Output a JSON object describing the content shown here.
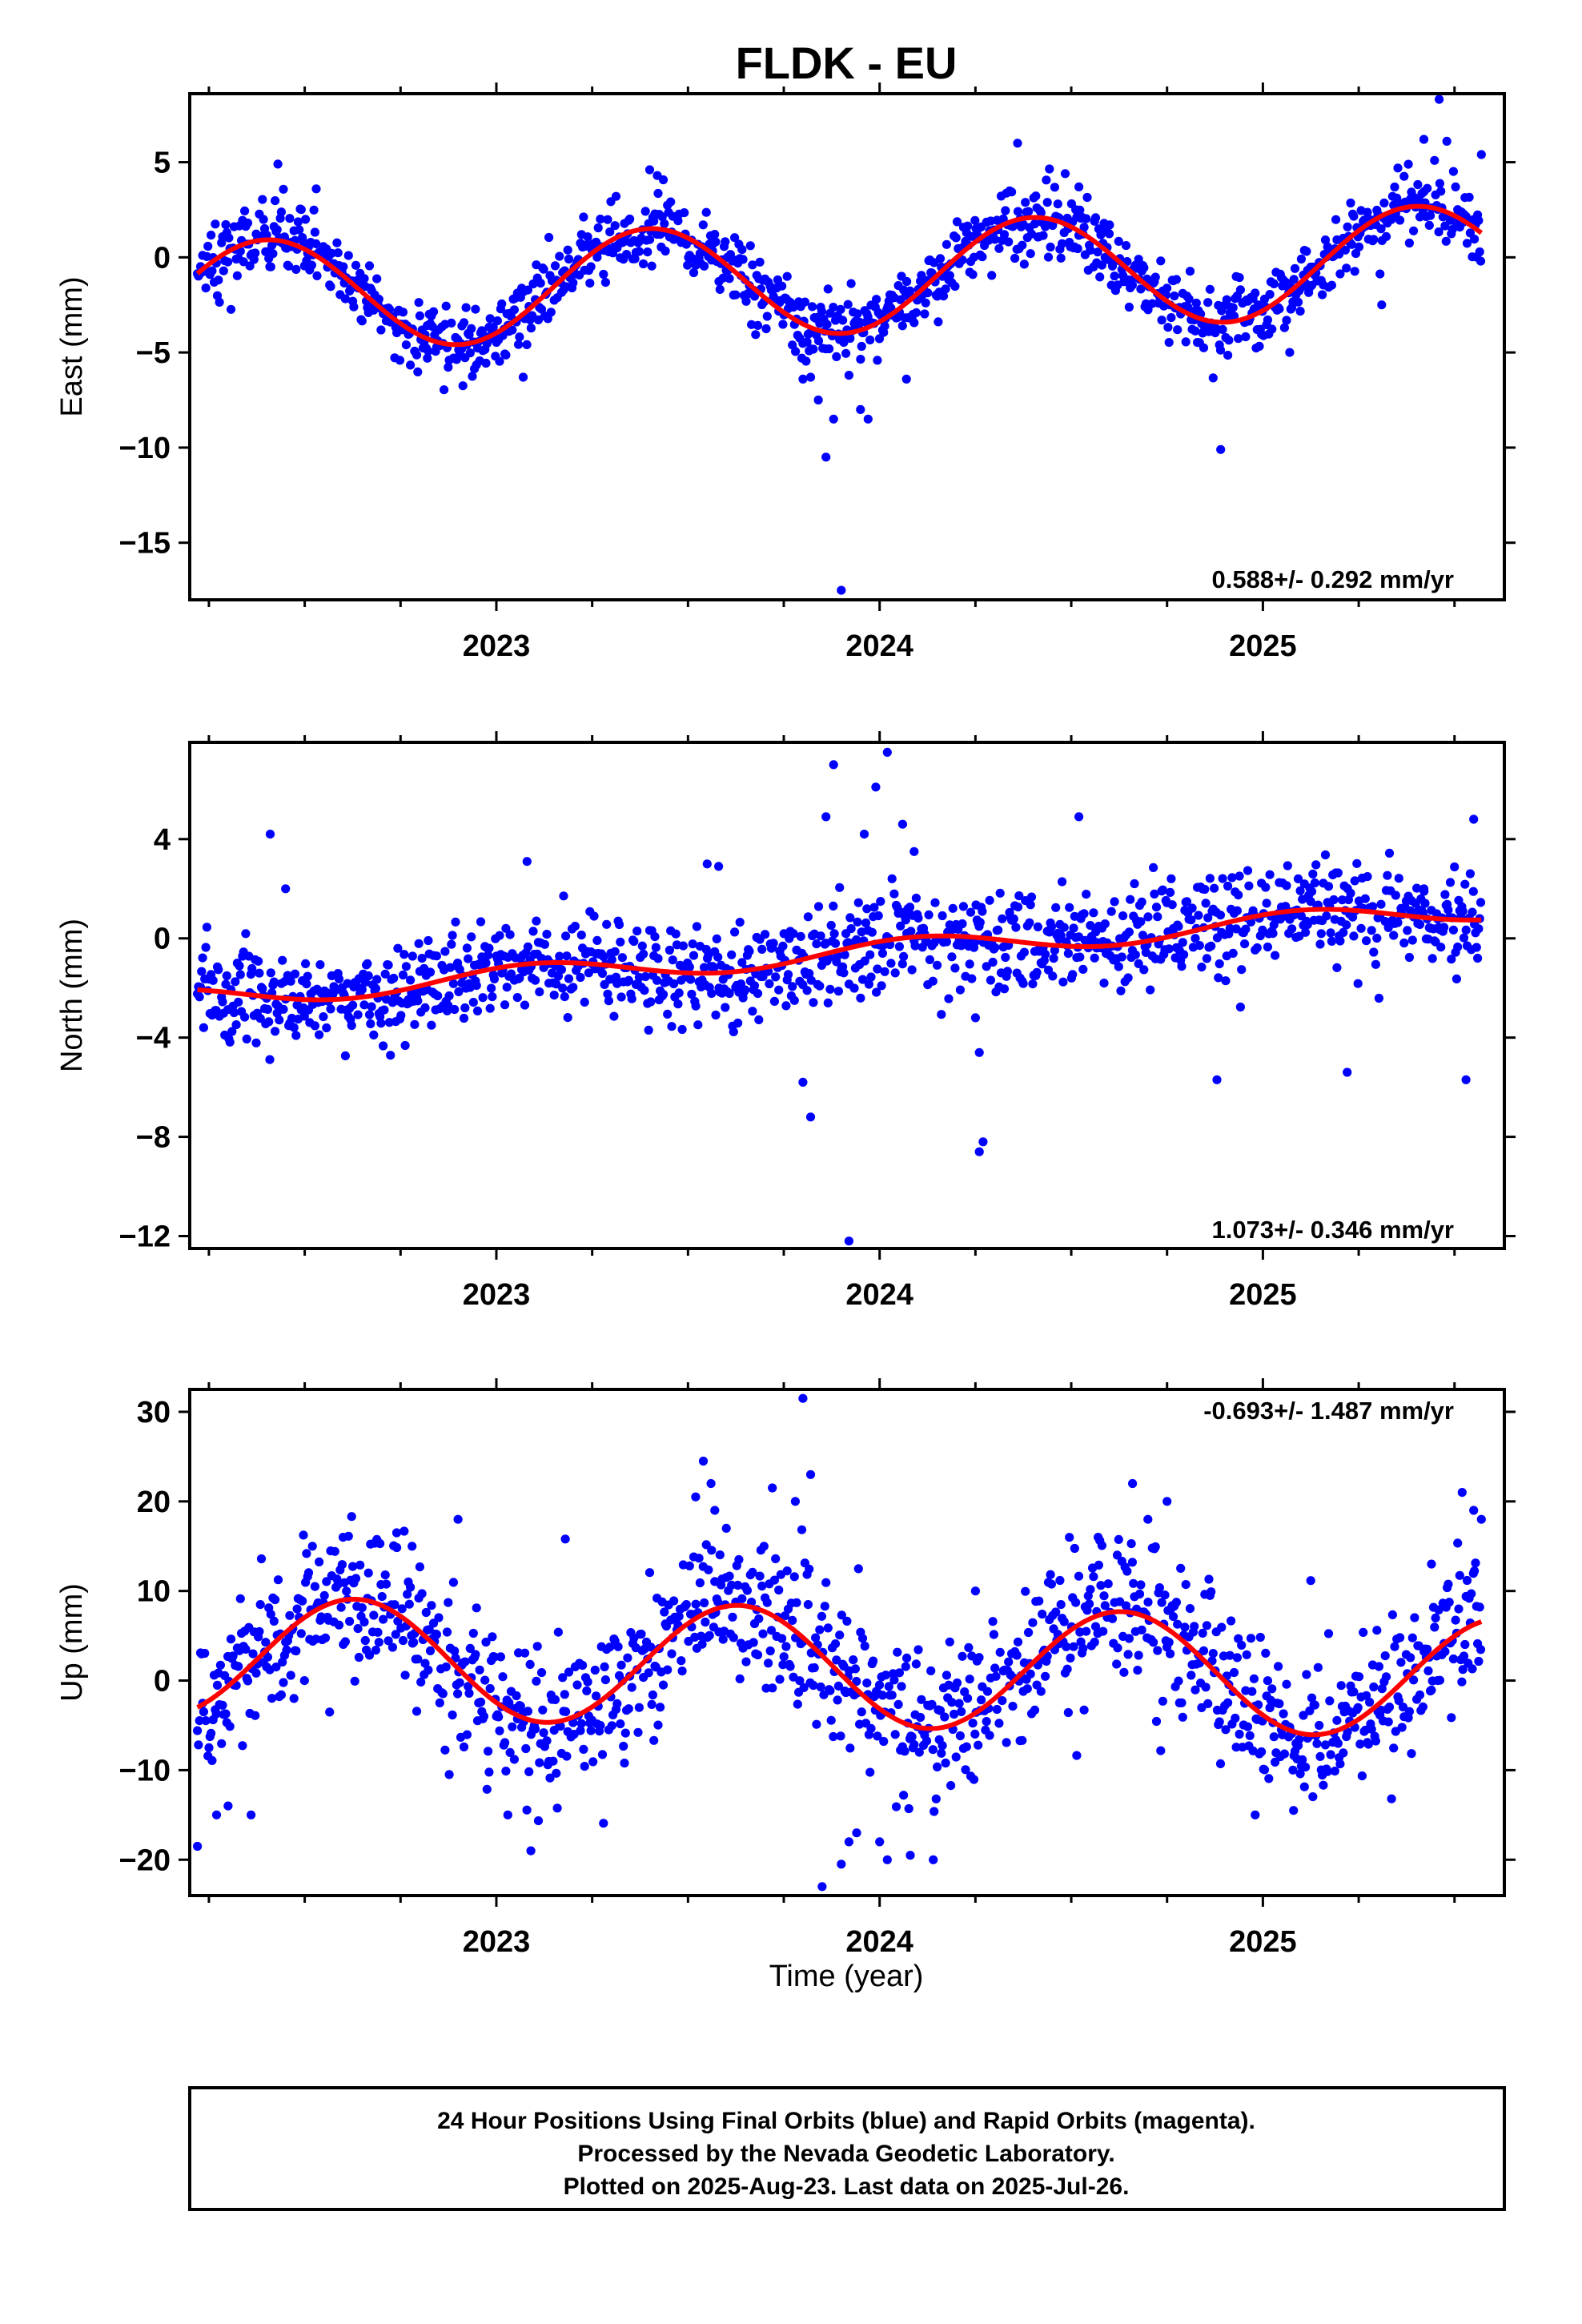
{
  "title": "FLDK - EU",
  "xlabel": "Time (year)",
  "footer": {
    "line1": "24 Hour Positions Using Final Orbits (blue) and Rapid Orbits (magenta).",
    "line2": "Processed by the Nevada Geodetic Laboratory.",
    "line3": "Plotted on 2025-Aug-23. Last data on 2025-Jul-26."
  },
  "colors": {
    "points": "#0000ff",
    "fit": "#ff0000",
    "frame": "#000000"
  },
  "chart_data": [
    {
      "type": "scatter",
      "ylabel": "East (mm)",
      "rate_text": "0.588+/- 0.292 mm/yr",
      "xlim": [
        2022.2,
        2025.63
      ],
      "ylim": [
        -18,
        8.6
      ],
      "yticks": [
        5,
        0,
        -5,
        -10,
        -15
      ],
      "ytick_labels": [
        "5",
        "0",
        "−5",
        "−10",
        "−15"
      ],
      "xticks": [
        2023,
        2024,
        2025
      ],
      "xtick_labels": [
        "2023",
        "2024",
        "2025"
      ],
      "fit": {
        "offset": -1.1,
        "rate": 0.588,
        "amp": 2.9,
        "peak": 0.4
      },
      "scatter_sigma": 0.95,
      "series": [
        {
          "x": [
            2022.43,
            2022.53,
            2022.82,
            2022.91,
            2023.07,
            2023.4,
            2023.42,
            2023.8,
            2023.82,
            2023.84,
            2023.86,
            2023.88,
            2023.9,
            2023.92,
            2023.95,
            2023.97,
            2024.07,
            2024.36,
            2024.52,
            2024.6,
            2024.89,
            2025.07,
            2025.31,
            2025.42,
            2025.46,
            2025.48,
            2025.57
          ],
          "y": [
            4.9,
            3.6,
            -5.3,
            -4.8,
            -6.3,
            4.6,
            4.3,
            -6.4,
            -6.3,
            -7.5,
            -10.5,
            -8.5,
            -17.5,
            -6.2,
            -8.0,
            -8.5,
            -6.4,
            6.0,
            3.7,
            1.7,
            -10.1,
            -5.0,
            -2.5,
            6.2,
            8.3,
            6.1,
            5.4
          ]
        }
      ]
    },
    {
      "type": "scatter",
      "ylabel": "North (mm)",
      "rate_text": "1.073+/- 0.346 mm/yr",
      "xlim": [
        2022.2,
        2025.63
      ],
      "ylim": [
        -12.5,
        7.9
      ],
      "yticks": [
        4,
        0,
        -4,
        -8,
        -12
      ],
      "ytick_labels": [
        "4",
        "0",
        "−4",
        "−8",
        "−12"
      ],
      "xticks": [
        2023,
        2024,
        2025
      ],
      "xtick_labels": [
        "2023",
        "2024",
        "2025"
      ],
      "fit": {
        "offset": -0.6,
        "rate": 1.073,
        "amp": 0.45,
        "peak": 0.1
      },
      "scatter_sigma": 1.0,
      "series": [
        {
          "x": [
            2022.41,
            2022.45,
            2023.08,
            2023.55,
            2023.58,
            2023.8,
            2023.82,
            2023.86,
            2023.88,
            2023.92,
            2023.96,
            2023.99,
            2024.02,
            2024.06,
            2024.09,
            2024.25,
            2024.26,
            2024.26,
            2024.27,
            2024.52,
            2024.88,
            2025.22,
            2025.42,
            2025.53,
            2025.55
          ],
          "y": [
            4.2,
            2.0,
            3.1,
            3.0,
            2.9,
            -5.8,
            -7.2,
            4.9,
            7.0,
            -12.2,
            4.2,
            6.1,
            7.5,
            4.6,
            3.5,
            -3.2,
            -4.6,
            -8.6,
            -8.2,
            4.9,
            -5.7,
            -5.4,
            2.0,
            -5.7,
            4.8
          ]
        }
      ]
    },
    {
      "type": "scatter",
      "ylabel": "Up (mm)",
      "rate_text": "-0.693+/- 1.487 mm/yr",
      "xlim": [
        2022.2,
        2025.63
      ],
      "ylim": [
        -24,
        32.5
      ],
      "yticks": [
        30,
        20,
        10,
        0,
        -10,
        -20
      ],
      "ytick_labels": [
        "30",
        "20",
        "10",
        "0",
        "−10",
        "−20"
      ],
      "xticks": [
        2023,
        2024,
        2025
      ],
      "xtick_labels": [
        "2023",
        "2024",
        "2025"
      ],
      "fit": {
        "offset": 1.5,
        "rate": -0.693,
        "amp": 6.7,
        "peak": 0.63
      },
      "scatter_sigma": 4.2,
      "series": [
        {
          "x": [
            2022.22,
            2022.27,
            2022.3,
            2022.36,
            2022.52,
            2022.6,
            2022.74,
            2022.78,
            2022.9,
            2023.03,
            2023.09,
            2023.18,
            2023.52,
            2023.54,
            2023.56,
            2023.57,
            2023.6,
            2023.72,
            2023.78,
            2023.8,
            2023.82,
            2023.85,
            2023.9,
            2023.92,
            2023.94,
            2024.0,
            2024.02,
            2024.08,
            2024.14,
            2024.25,
            2024.57,
            2024.62,
            2024.66,
            2024.7,
            2024.75,
            2024.98,
            2025.08,
            2025.44,
            2025.52,
            2025.55,
            2025.57
          ],
          "y": [
            -18.5,
            -15.0,
            -14.0,
            -15.0,
            15.0,
            16.0,
            16.5,
            15.0,
            18.0,
            -15.0,
            -19.0,
            15.8,
            20.5,
            24.5,
            22.0,
            19.0,
            17.0,
            21.5,
            20.0,
            31.5,
            23.0,
            -23.0,
            -20.5,
            -18.0,
            -17.0,
            -18.0,
            -20.0,
            -19.5,
            -20.0,
            10.0,
            16.0,
            14.0,
            22.0,
            18.0,
            20.0,
            -15.0,
            -14.5,
            13.0,
            21.0,
            19.0,
            18.0
          ]
        }
      ]
    }
  ]
}
